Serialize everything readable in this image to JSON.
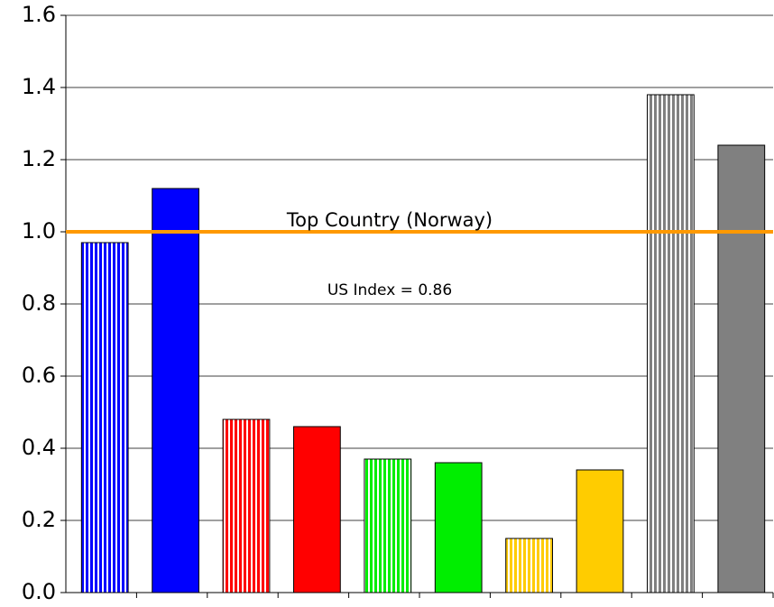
{
  "chart_data": {
    "type": "bar",
    "categories": [
      null,
      null,
      null,
      null,
      null,
      null,
      null,
      null,
      null,
      null
    ],
    "values": [
      0.97,
      1.12,
      0.48,
      0.46,
      0.37,
      0.36,
      0.15,
      0.34,
      1.38,
      1.24
    ],
    "colors": [
      "#0000ff",
      "#0000ff",
      "#ff0000",
      "#ff0000",
      "#00ee00",
      "#00ee00",
      "#ffcc00",
      "#ffcc00",
      "#808080",
      "#808080"
    ],
    "patterns": [
      "striped",
      "solid",
      "striped",
      "solid",
      "striped",
      "solid",
      "striped",
      "solid",
      "striped",
      "solid"
    ],
    "ylim": [
      0,
      1.6
    ],
    "yticks": [
      {
        "value": 0,
        "label": "0.0"
      },
      0.2,
      0.4,
      0.6,
      0.8,
      {
        "value": 1,
        "label": "1.0"
      },
      1.2,
      1.4,
      1.6
    ],
    "grid": true,
    "reference_line": {
      "value": 1,
      "label": "Top Country (Norway)",
      "color": "#ff9900"
    },
    "annotations": [
      "US Index = 0.86"
    ]
  }
}
